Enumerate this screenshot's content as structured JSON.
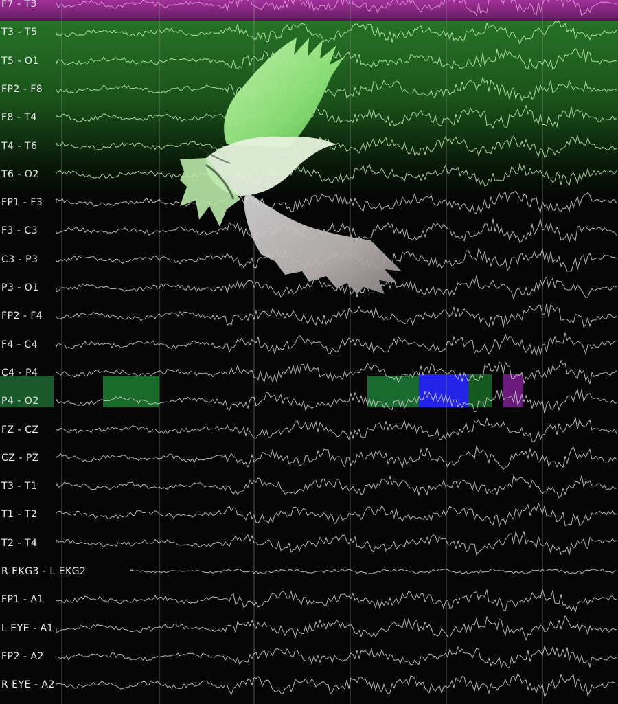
{
  "channels": [
    "F7 - T3",
    "T3 - T5",
    "T5 - O1",
    "FP2 - F8",
    "F8 - T4",
    "T4 - T6",
    "T6 - O2",
    "FP1 - F3",
    "F3 - C3",
    "C3 - P3",
    "P3 - O1",
    "FP2 - F4",
    "F4 - C4",
    "C4 - P4",
    "P4 - O2",
    "FZ - CZ",
    "CZ - PZ",
    "T3 - T1",
    "T1 - T2",
    "T2 - T4",
    "R EKG3 - L EKG2",
    "FP1 - A1",
    "L EYE - A1",
    "FP2 - A2",
    "R EYE - A2"
  ],
  "icons": {
    "bird": "bird-silhouette-icon"
  },
  "colors": {
    "background": "#050505",
    "trace": "#d8d8d8",
    "pink_band": "#c040b8",
    "green_band": "#3a9a3a",
    "highlight_green": "#1a7a2a",
    "highlight_blue": "#2020e0",
    "highlight_purple": "#6a1a7a"
  }
}
